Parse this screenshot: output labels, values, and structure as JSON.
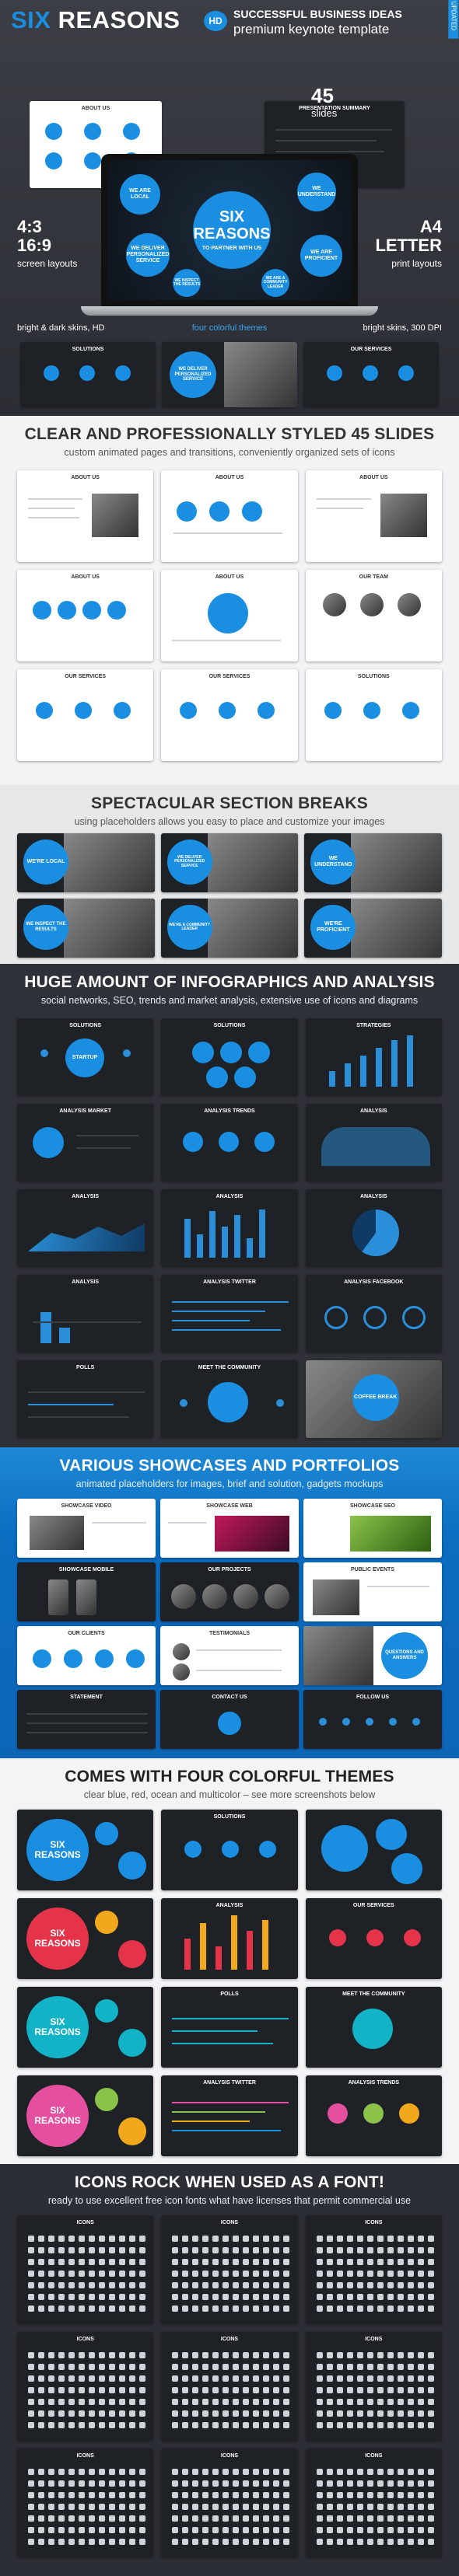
{
  "hero": {
    "brand_main": "SIX",
    "brand_rest": "REASONS",
    "badge": "HD",
    "corner_ribbon": "UPDATED",
    "tagline1": "SUCCESSFUL BUSINESS IDEAS",
    "tagline2": "premium keynote template",
    "slides_count": "45",
    "slides_word": "slides",
    "laptop_title": "SIX REASONS",
    "laptop_subtitle": "TO PARTNER WITH US",
    "laptop_bubbles": [
      "WE ARE LOCAL",
      "WE DELIVER PERSONALIZED SERVICE",
      "WE INSPECT THE RESULTS",
      "WE ARE PROFICIENT",
      "WE UNDERSTAND",
      "WE ARE A COMMUNITY LEADER"
    ],
    "left_ratio1": "4:3",
    "left_ratio2": "16:9",
    "left_ratio_label": "screen layouts",
    "right_format1": "A4",
    "right_format2": "LETTER",
    "right_format_label": "print layouts",
    "left_caption": "bright & dark skins, HD",
    "center_caption": "four colorful themes",
    "right_caption": "bright skins, 300 DPI",
    "top_thumbs": [
      "ABOUT US",
      "PRESENTATION SUMMARY"
    ],
    "bottom_thumbs": [
      "SOLUTIONS",
      "WE DELIVER PERSONALIZED SERVICE",
      "OUR SERVICES"
    ]
  },
  "section2": {
    "title": "CLEAR AND PROFESSIONALLY STYLED 45 SLIDES",
    "subtitle": "custom animated pages and transitions, conveniently organized sets of icons",
    "thumbs": [
      "ABOUT US",
      "ABOUT US",
      "ABOUT US",
      "ABOUT US",
      "ABOUT US",
      "OUR TEAM",
      "OUR SERVICES",
      "OUR SERVICES",
      "SOLUTIONS"
    ]
  },
  "section3": {
    "title": "SPECTACULAR SECTION BREAKS",
    "subtitle": "using placeholders allows you easy to place and customize your images",
    "breaks": [
      "WE'RE LOCAL",
      "WE DELIVER PERSONALIZED SERVICE",
      "WE UNDERSTAND",
      "WE INSPECT THE RESULTS",
      "WE'RE A COMMUNITY LEADER",
      "WE'RE PROFICIENT"
    ]
  },
  "section4": {
    "title": "HUGE AMOUNT OF INFOGRAPHICS AND ANALYSIS",
    "subtitle": "social networks, SEO, trends and market analysis, extensive use of icons and diagrams",
    "thumbs": [
      "SOLUTIONS",
      "SOLUTIONS",
      "STRATEGIES",
      "ANALYSIS MARKET",
      "ANALYSIS TRENDS",
      "ANALYSIS",
      "ANALYSIS",
      "ANALYSIS",
      "ANALYSIS",
      "ANALYSIS",
      "ANALYSIS TWITTER",
      "ANALYSIS FACEBOOK",
      "POLLS",
      "MEET THE COMMUNITY",
      ""
    ],
    "coffee": "COFFEE BREAK",
    "startup": "STARTUP"
  },
  "section5": {
    "title": "VARIOUS SHOWCASES AND PORTFOLIOS",
    "subtitle": "animated placeholders for images, brief and solution, gadgets mockups",
    "thumbs": [
      "SHOWCASE VIDEO",
      "SHOWCASE WEB",
      "SHOWCASE SEO",
      "SHOWCASE MOBILE",
      "OUR PROJECTS",
      "PUBLIC EVENTS",
      "OUR CLIENTS",
      "TESTIMONIALS",
      "",
      "STATEMENT",
      "CONTACT US",
      "FOLLOW US"
    ],
    "qa": "QUESTIONS AND ANSWERS"
  },
  "section6": {
    "title": "COMES WITH FOUR COLORFUL THEMES",
    "subtitle": "clear blue, red, ocean and multicolor – see more screenshots below",
    "rows": [
      [
        "SIX REASONS",
        "SOLUTIONS",
        ""
      ],
      [
        "SIX REASONS",
        "ANALYSIS",
        "OUR SERVICES"
      ],
      [
        "SIX REASONS",
        "POLLS",
        "MEET THE COMMUNITY"
      ],
      [
        "SIX REASONS",
        "ANALYSIS TWITTER",
        "ANALYSIS TRENDS"
      ]
    ],
    "theme_colors": [
      "#1a8ee0",
      "#e5334a",
      "#12b3c6",
      "#e54fa0"
    ]
  },
  "section7": {
    "title": "ICONS ROCK WHEN USED AS A FONT!",
    "subtitle": "ready to use excellent free icon fonts what have licenses that permit commercial use",
    "thumbs": [
      "ICONS",
      "ICONS",
      "ICONS",
      "ICONS",
      "ICONS",
      "ICONS",
      "ICONS",
      "ICONS",
      "ICONS"
    ]
  },
  "colors": {
    "accent": "#1a8ee0",
    "dark_bg": "#2b2e34",
    "blue_bg": "#0d6cc0"
  }
}
